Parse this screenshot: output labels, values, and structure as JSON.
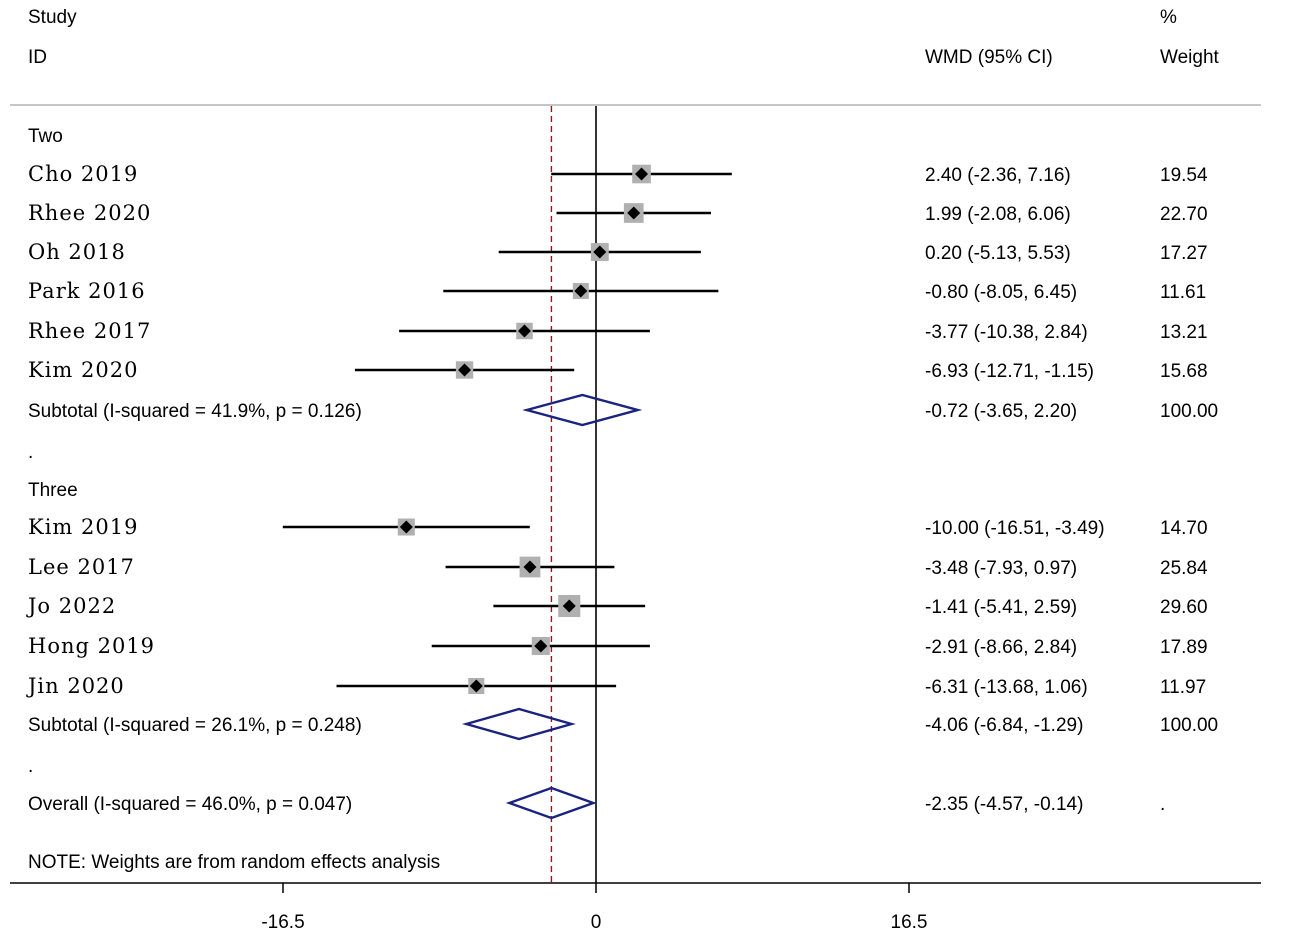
{
  "header": {
    "study_line1": "Study",
    "study_line2": "ID",
    "effect_col": "WMD (95% CI)",
    "weight_line1": "%",
    "weight_line2": "Weight"
  },
  "note": "NOTE: Weights are from random effects analysis",
  "colors": {
    "study_line": "#000000",
    "weight_box": "#b0b0b0",
    "point": "#000000",
    "diamond": "#1a237e",
    "overall_ref_line": "#8b1a1a",
    "null_line": "#000000",
    "separator": "#b4b4b4"
  },
  "chart_data": {
    "type": "forest",
    "x_ticks": [
      -16.5,
      0,
      16.5
    ],
    "x_tick_labels": [
      "-16.5",
      "0",
      "16.5"
    ],
    "null_value": 0,
    "overall_reference": -2.35,
    "rows": [
      {
        "kind": "group",
        "label": "Two"
      },
      {
        "kind": "study",
        "label": "Cho  2019",
        "est": 2.4,
        "lo": -2.36,
        "hi": 7.16,
        "ci_text": "2.40 (-2.36, 7.16)",
        "weight": 19.54,
        "weight_text": "19.54"
      },
      {
        "kind": "study",
        "label": "Rhee 2020",
        "est": 1.99,
        "lo": -2.08,
        "hi": 6.06,
        "ci_text": "1.99 (-2.08, 6.06)",
        "weight": 22.7,
        "weight_text": "22.70"
      },
      {
        "kind": "study",
        "label": "Oh   2018",
        "est": 0.2,
        "lo": -5.13,
        "hi": 5.53,
        "ci_text": "0.20 (-5.13, 5.53)",
        "weight": 17.27,
        "weight_text": "17.27"
      },
      {
        "kind": "study",
        "label": "Park 2016",
        "est": -0.8,
        "lo": -8.05,
        "hi": 6.45,
        "ci_text": "-0.80 (-8.05, 6.45)",
        "weight": 11.61,
        "weight_text": "11.61"
      },
      {
        "kind": "study",
        "label": "Rhee 2017",
        "est": -3.77,
        "lo": -10.38,
        "hi": 2.84,
        "ci_text": "-3.77 (-10.38, 2.84)",
        "weight": 13.21,
        "weight_text": "13.21"
      },
      {
        "kind": "study",
        "label": "Kim  2020",
        "est": -6.93,
        "lo": -12.71,
        "hi": -1.15,
        "ci_text": "-6.93 (-12.71, -1.15)",
        "weight": 15.68,
        "weight_text": "15.68"
      },
      {
        "kind": "subtotal",
        "label": "Subtotal  (I-squared = 41.9%, p = 0.126)",
        "est": -0.72,
        "lo": -3.65,
        "hi": 2.2,
        "ci_text": "-0.72 (-3.65, 2.20)",
        "weight_text": "100.00"
      },
      {
        "kind": "spacer",
        "label": "."
      },
      {
        "kind": "group",
        "label": "Three"
      },
      {
        "kind": "study",
        "label": "Kim 2019",
        "est": -10.0,
        "lo": -16.51,
        "hi": -3.49,
        "ci_text": "-10.00 (-16.51, -3.49)",
        "weight": 14.7,
        "weight_text": "14.70"
      },
      {
        "kind": "study",
        "label": "Lee 2017",
        "est": -3.48,
        "lo": -7.93,
        "hi": 0.97,
        "ci_text": "-3.48 (-7.93, 0.97)",
        "weight": 25.84,
        "weight_text": "25.84"
      },
      {
        "kind": "study",
        "label": "Jo  2022",
        "est": -1.41,
        "lo": -5.41,
        "hi": 2.59,
        "ci_text": "-1.41 (-5.41, 2.59)",
        "weight": 29.6,
        "weight_text": "29.60"
      },
      {
        "kind": "study",
        "label": "Hong 2019",
        "est": -2.91,
        "lo": -8.66,
        "hi": 2.84,
        "ci_text": "-2.91 (-8.66, 2.84)",
        "weight": 17.89,
        "weight_text": "17.89"
      },
      {
        "kind": "study",
        "label": "Jin  2020",
        "est": -6.31,
        "lo": -13.68,
        "hi": 1.06,
        "ci_text": "-6.31 (-13.68, 1.06)",
        "weight": 11.97,
        "weight_text": "11.97"
      },
      {
        "kind": "subtotal",
        "label": "Subtotal  (I-squared = 26.1%, p = 0.248)",
        "est": -4.06,
        "lo": -6.84,
        "hi": -1.29,
        "ci_text": "-4.06 (-6.84, -1.29)",
        "weight_text": "100.00"
      },
      {
        "kind": "spacer",
        "label": "."
      },
      {
        "kind": "overall",
        "label": "Overall  (I-squared = 46.0%, p = 0.047)",
        "est": -2.35,
        "lo": -4.57,
        "hi": -0.14,
        "ci_text": "-2.35 (-4.57, -0.14)",
        "weight_text": "."
      }
    ]
  }
}
